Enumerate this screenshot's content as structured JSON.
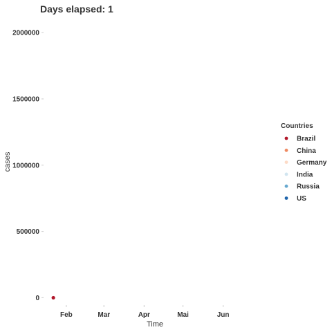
{
  "chart_data": {
    "type": "scatter",
    "title": "Days elapsed: 1",
    "xlabel": "Time",
    "ylabel": "cases",
    "x_tick_labels": [
      "Feb",
      "Mar",
      "Apr",
      "Mai",
      "Jun"
    ],
    "y_ticks": [
      0,
      500000,
      1000000,
      1500000,
      2000000
    ],
    "y_tick_labels": [
      "0",
      "500000",
      "1000000",
      "1500000",
      "2000000"
    ],
    "ylim": [
      -50000,
      2100000
    ],
    "legend_title": "Countries",
    "legend_position": "right",
    "grid": false,
    "series": [
      {
        "name": "Brazil",
        "color": "#b2182b",
        "points": [
          {
            "x": "2020-01-22",
            "y": 0
          }
        ]
      },
      {
        "name": "China",
        "color": "#ef8a62",
        "points": []
      },
      {
        "name": "Germany",
        "color": "#fddbc7",
        "points": []
      },
      {
        "name": "India",
        "color": "#d1e5f0",
        "points": []
      },
      {
        "name": "Russia",
        "color": "#67a9cf",
        "points": []
      },
      {
        "name": "US",
        "color": "#2166ac",
        "points": []
      }
    ]
  }
}
